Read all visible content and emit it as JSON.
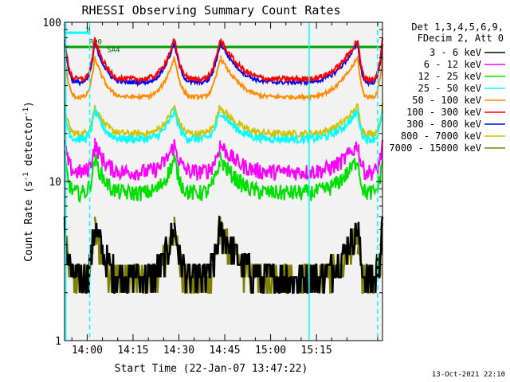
{
  "chart_data": {
    "type": "line",
    "title": "RHESSI Observing Summary Count Rates",
    "xlabel": "Start Time (22-Jan-07 13:47:22)",
    "ylabel": "Count Rate (s⁻¹ detector⁻¹)",
    "ylabel_main": "Count Rate (s",
    "ylabel_sup1": "-1",
    "ylabel_mid": " detector",
    "ylabel_sup2": "-1",
    "ylabel_end": ")",
    "yscale": "log",
    "ylim": [
      1,
      100
    ],
    "xlim_minutes": [
      -7.4,
      96.6
    ],
    "x_ticks": [
      {
        "minute": 0,
        "label": "14:00"
      },
      {
        "minute": 15,
        "label": "14:15"
      },
      {
        "minute": 30,
        "label": "14:30"
      },
      {
        "minute": 45,
        "label": "14:45"
      },
      {
        "minute": 60,
        "label": "15:00"
      },
      {
        "minute": 75,
        "label": "15:15"
      }
    ],
    "y_ticks": [
      {
        "value": 1,
        "label": "1"
      },
      {
        "value": 10,
        "label": "10"
      },
      {
        "value": 100,
        "label": "100"
      }
    ],
    "legend_header": [
      "Det 1,3,4,5,6,9,",
      "FDecim 2, Att 0"
    ],
    "legend_placement": "right",
    "footer_date": "13-Oct-2021 22:10",
    "series": [
      {
        "name": "3 - 6 keV",
        "color": "#000000",
        "base": 2.5,
        "swing": 0.75,
        "noise": 0.25,
        "quantized": true
      },
      {
        "name": "6 - 12 keV",
        "color": "#ff00ff",
        "base": 11.5,
        "swing": 0.35,
        "noise": 0.12
      },
      {
        "name": "12 - 25 keV",
        "color": "#00e000",
        "base": 8.5,
        "swing": 0.45,
        "noise": 0.12
      },
      {
        "name": "25 - 50 keV",
        "color": "#00ffff",
        "base": 18.5,
        "swing": 0.35,
        "noise": 0.06
      },
      {
        "name": "50 - 100 keV",
        "color": "#ff8c00",
        "base": 34,
        "swing": 0.55,
        "noise": 0.03
      },
      {
        "name": "100 - 300 keV",
        "color": "#ff0000",
        "base": 44,
        "swing": 0.55,
        "noise": 0.04
      },
      {
        "name": "300 - 800 keV",
        "color": "#0000ff",
        "base": 42,
        "swing": 0.55,
        "noise": 0.03
      },
      {
        "name": "800 - 7000 keV",
        "color": "#d4c200",
        "base": 20,
        "swing": 0.35,
        "noise": 0.05
      },
      {
        "name": "7000 - 15000 keV",
        "color": "#808000",
        "base": 2.4,
        "swing": 0.75,
        "noise": 0.25,
        "quantized": true
      }
    ],
    "segments_minutes": [
      {
        "start": -7.4,
        "end": 2.5,
        "kind": "night"
      },
      {
        "start": 2.5,
        "end": 28.5,
        "kind": "day"
      },
      {
        "start": 28.5,
        "end": 43.5,
        "kind": "day"
      },
      {
        "start": 43.5,
        "end": 88.5,
        "kind": "day"
      },
      {
        "start": 88.5,
        "end": 96.6,
        "kind": "day"
      }
    ],
    "cyan_lines_minutes": [
      {
        "minute": -7.0,
        "style": "solid"
      },
      {
        "minute": 0.8,
        "style": "dashed"
      },
      {
        "minute": 72.6,
        "style": "solid"
      },
      {
        "minute": 95.0,
        "style": "dashed"
      }
    ],
    "flag_bars": [
      {
        "label": "RD0",
        "color": "#00a000",
        "start": -7.4,
        "end": 96.6,
        "level": 70
      },
      {
        "label": "N",
        "color": "#00ffff",
        "start": -7.4,
        "end": 1.0,
        "level": 86
      },
      {
        "label": "RD0",
        "color": "#00a000",
        "start": 45,
        "end": 72,
        "level": 70
      }
    ],
    "flag_texts": [
      {
        "text": "RD0",
        "minute": 0.6,
        "level": 73
      },
      {
        "text": "N",
        "minute": -0.3,
        "level": 87
      },
      {
        "text": "SA4",
        "minute": 6.5,
        "level": 65
      }
    ]
  }
}
